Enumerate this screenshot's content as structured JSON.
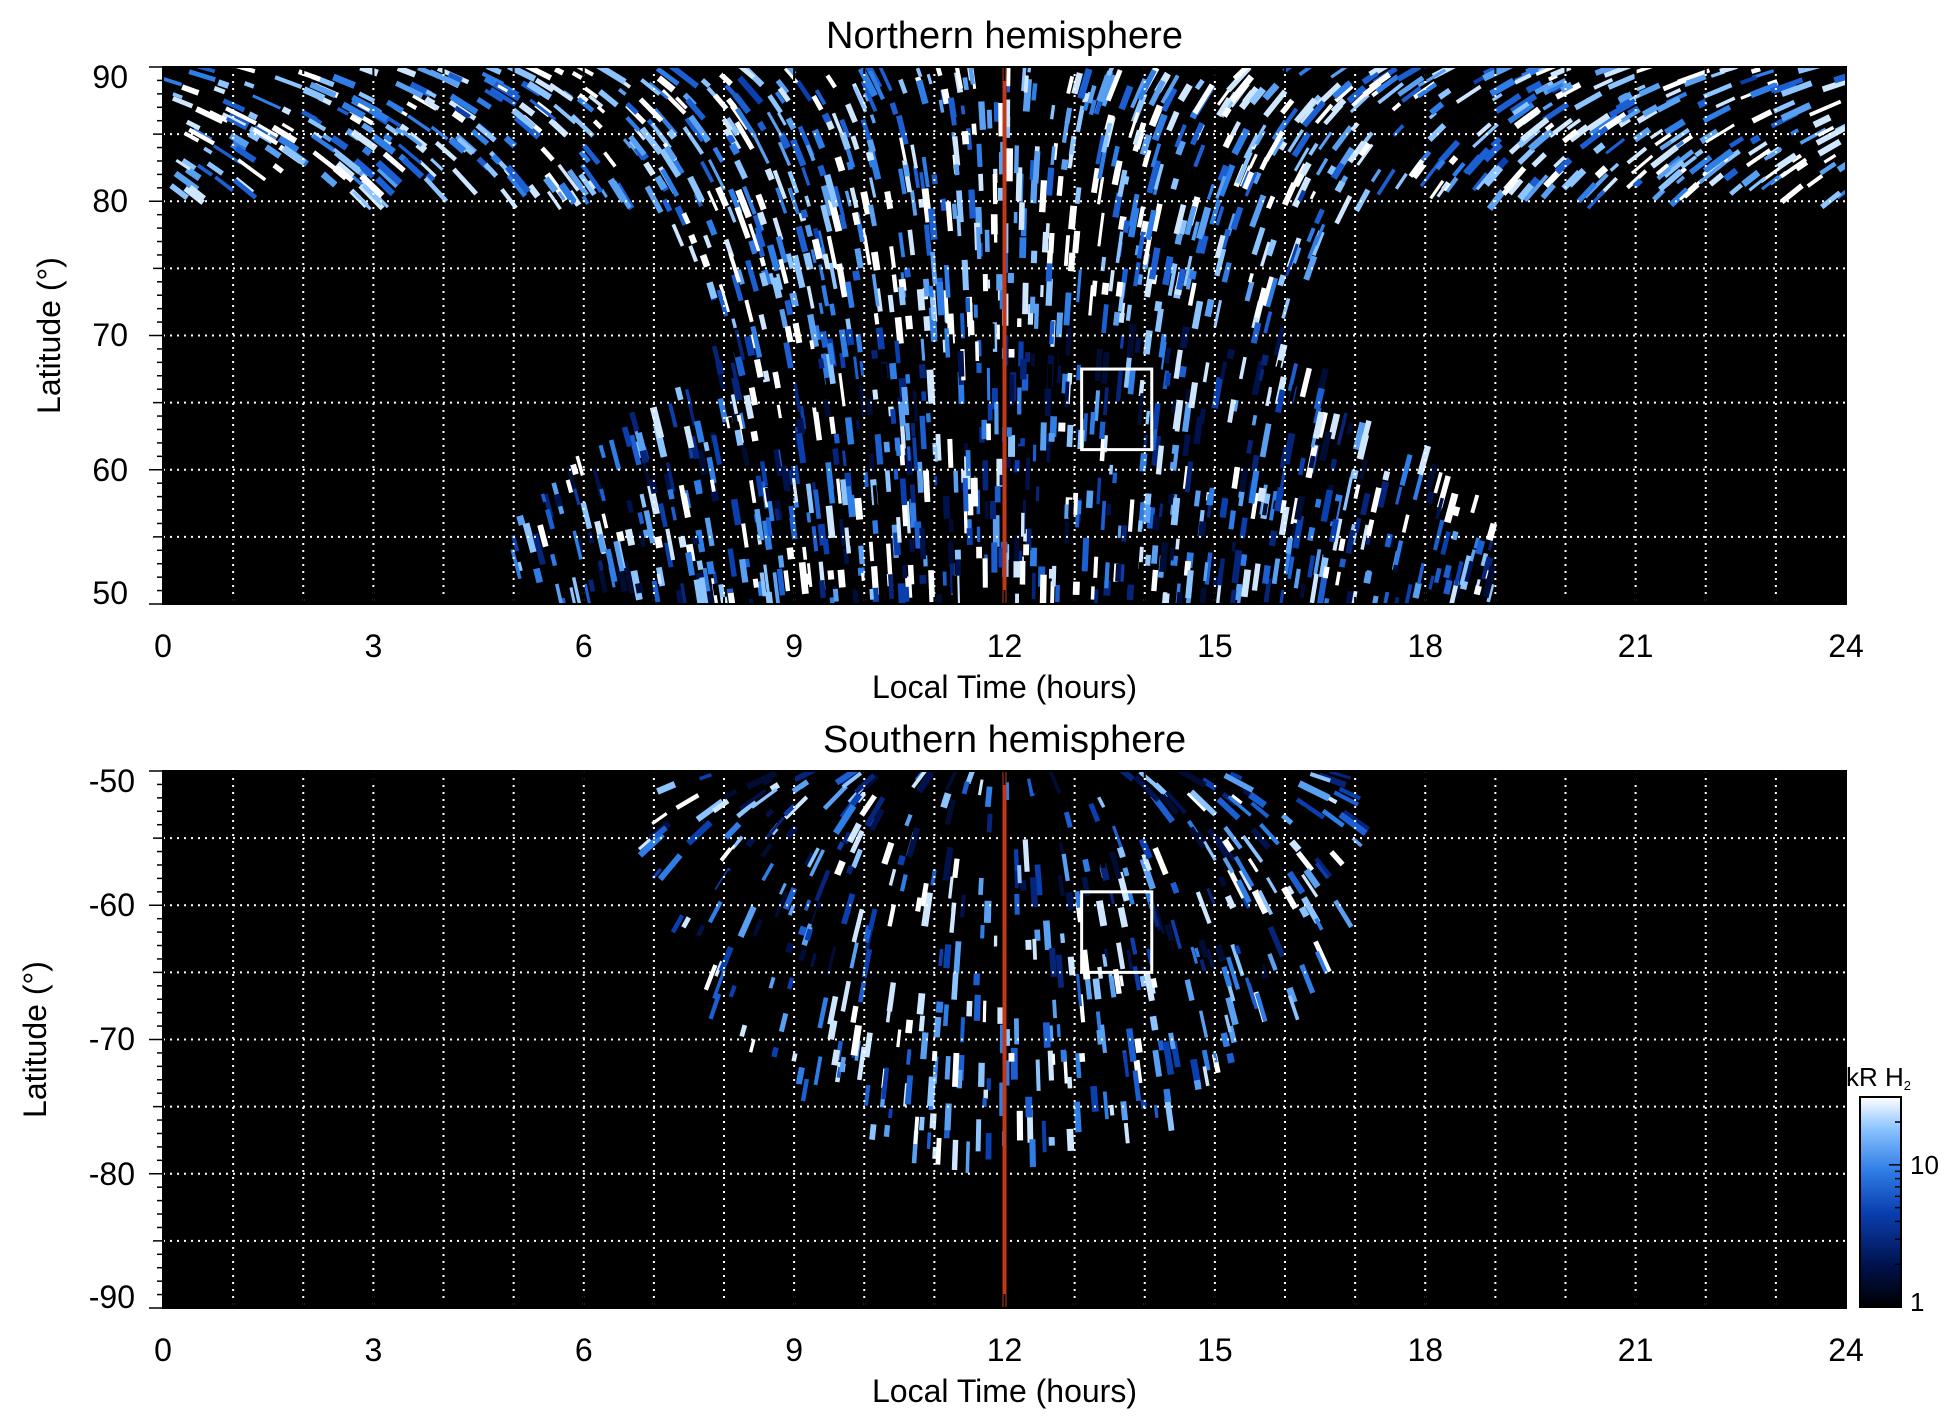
{
  "chart_data": [
    {
      "type": "heatmap",
      "title": "Northern hemisphere",
      "xlabel": "Local Time (hours)",
      "ylabel": "Latitude (°)",
      "xlim": [
        0,
        24
      ],
      "ylim": [
        50,
        90
      ],
      "x_ticks": [
        "0",
        "3",
        "6",
        "9",
        "12",
        "15",
        "18",
        "21",
        "24"
      ],
      "y_ticks": [
        "50",
        "60",
        "70",
        "80",
        "90"
      ],
      "y_tick_values": [
        50,
        60,
        70,
        80,
        90
      ],
      "grid": true,
      "noon_line_lt": 12,
      "box": {
        "lt": [
          13.1,
          14.1
        ],
        "lat": [
          61.5,
          67.5
        ]
      },
      "coverage": {
        "pole_cap_lat": 80,
        "lt_min_at_edge": [
          5,
          19
        ],
        "edge_lat": 50
      }
    },
    {
      "type": "heatmap",
      "title": "Southern hemisphere",
      "xlabel": "Local Time (hours)",
      "ylabel": "Latitude (°)",
      "xlim": [
        0,
        24
      ],
      "ylim": [
        -90,
        -50
      ],
      "x_ticks": [
        "0",
        "3",
        "6",
        "9",
        "12",
        "15",
        "18",
        "21",
        "24"
      ],
      "y_ticks": [
        "-50",
        "-60",
        "-70",
        "-80",
        "-90"
      ],
      "y_tick_values": [
        -50,
        -60,
        -70,
        -80,
        -90
      ],
      "grid": true,
      "noon_line_lt": 12,
      "box": {
        "lt": [
          13.1,
          14.1
        ],
        "lat": [
          -65,
          -59
        ]
      },
      "coverage": {
        "lt_range_at_edge": [
          7,
          17
        ],
        "lowest_lat": -79
      }
    }
  ],
  "colorbar": {
    "label": "kR H",
    "label_sub": "2",
    "scale": "log",
    "range": [
      1,
      30
    ],
    "ticks": [
      "10",
      "1"
    ],
    "tick_values": [
      10,
      1
    ],
    "colors": [
      "#000000",
      "#00124d",
      "#0a3fb0",
      "#2f7de6",
      "#8cc4ff",
      "#ffffff"
    ]
  },
  "colors": {
    "noon_line": "#c0391b",
    "grid": "#ffffff",
    "box": "#ffffff",
    "background": "#000000"
  }
}
